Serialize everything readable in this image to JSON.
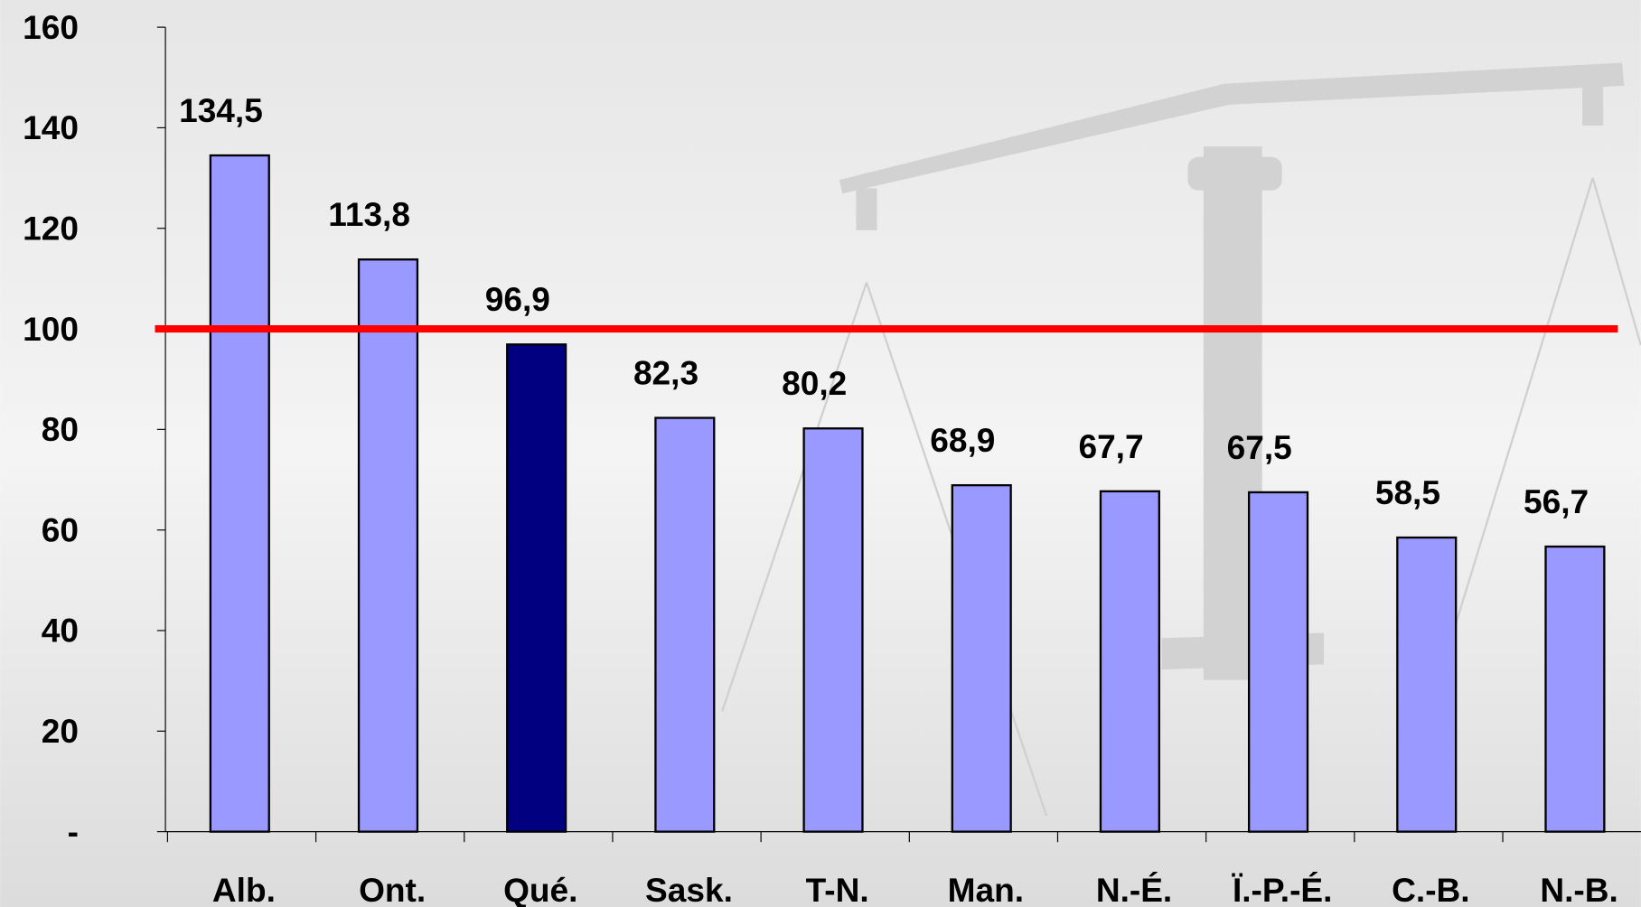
{
  "chart_data": {
    "type": "bar",
    "categories": [
      "Alb.",
      "Ont.",
      "Qué.",
      "Sask.",
      "T-N.",
      "Man.",
      "N.-É.",
      "Ï.-P.-É.",
      "C.-B.",
      "N.-B."
    ],
    "values": [
      134.5,
      113.8,
      96.9,
      82.3,
      80.2,
      68.9,
      67.7,
      67.5,
      58.5,
      56.7
    ],
    "value_labels": [
      "134,5",
      "113,8",
      "96,9",
      "82,3",
      "80,2",
      "68,9",
      "67,7",
      "67,5",
      "58,5",
      "56,7"
    ],
    "colors": [
      "#9999ff",
      "#9999ff",
      "#000080",
      "#9999ff",
      "#9999ff",
      "#9999ff",
      "#9999ff",
      "#9999ff",
      "#9999ff",
      "#9999ff"
    ],
    "ylim": [
      0,
      160
    ],
    "yticks": [
      {
        "value": 0,
        "label": "-"
      },
      20,
      40,
      60,
      80,
      100,
      120,
      140,
      160
    ],
    "reference_line": {
      "value": 100,
      "color": "#ff0000"
    }
  }
}
